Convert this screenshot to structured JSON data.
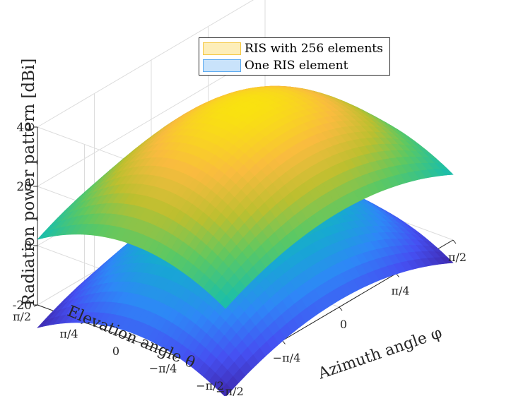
{
  "chart_data": {
    "type": "surface3d",
    "title": "",
    "zlabel": "Radiation power pattern [dBi]",
    "xlabel": "Azimuth angle φ",
    "ylabel": "Elevation angle θ",
    "zlim": [
      -20,
      40
    ],
    "z_ticks": [
      "40",
      "20",
      "0",
      "-20"
    ],
    "x_ticks": [
      "−π/2",
      "−π/4",
      "0",
      "π/4",
      "π/2"
    ],
    "y_ticks": [
      "π/2",
      "π/4",
      "0",
      "−π/4",
      "−π/2"
    ],
    "grid": true,
    "legend_position": "top-center",
    "series": [
      {
        "name": "RIS with 256 elements",
        "peak_dbi": 35.8,
        "edge_dbi": 12.1,
        "corner_dbi": 2.1,
        "color": "#f5c842"
      },
      {
        "name": "One RIS element",
        "peak_dbi": 6,
        "edge_dbi": -17.7,
        "corner_dbi": -27.7,
        "color": "#5aa9f0"
      }
    ],
    "colormap": [
      "#3e26a8",
      "#4550f2",
      "#2e87f7",
      "#17a8d2",
      "#1fbfa4",
      "#5cc863",
      "#bcbf2f",
      "#f9bb3f",
      "#f9e30f"
    ]
  }
}
